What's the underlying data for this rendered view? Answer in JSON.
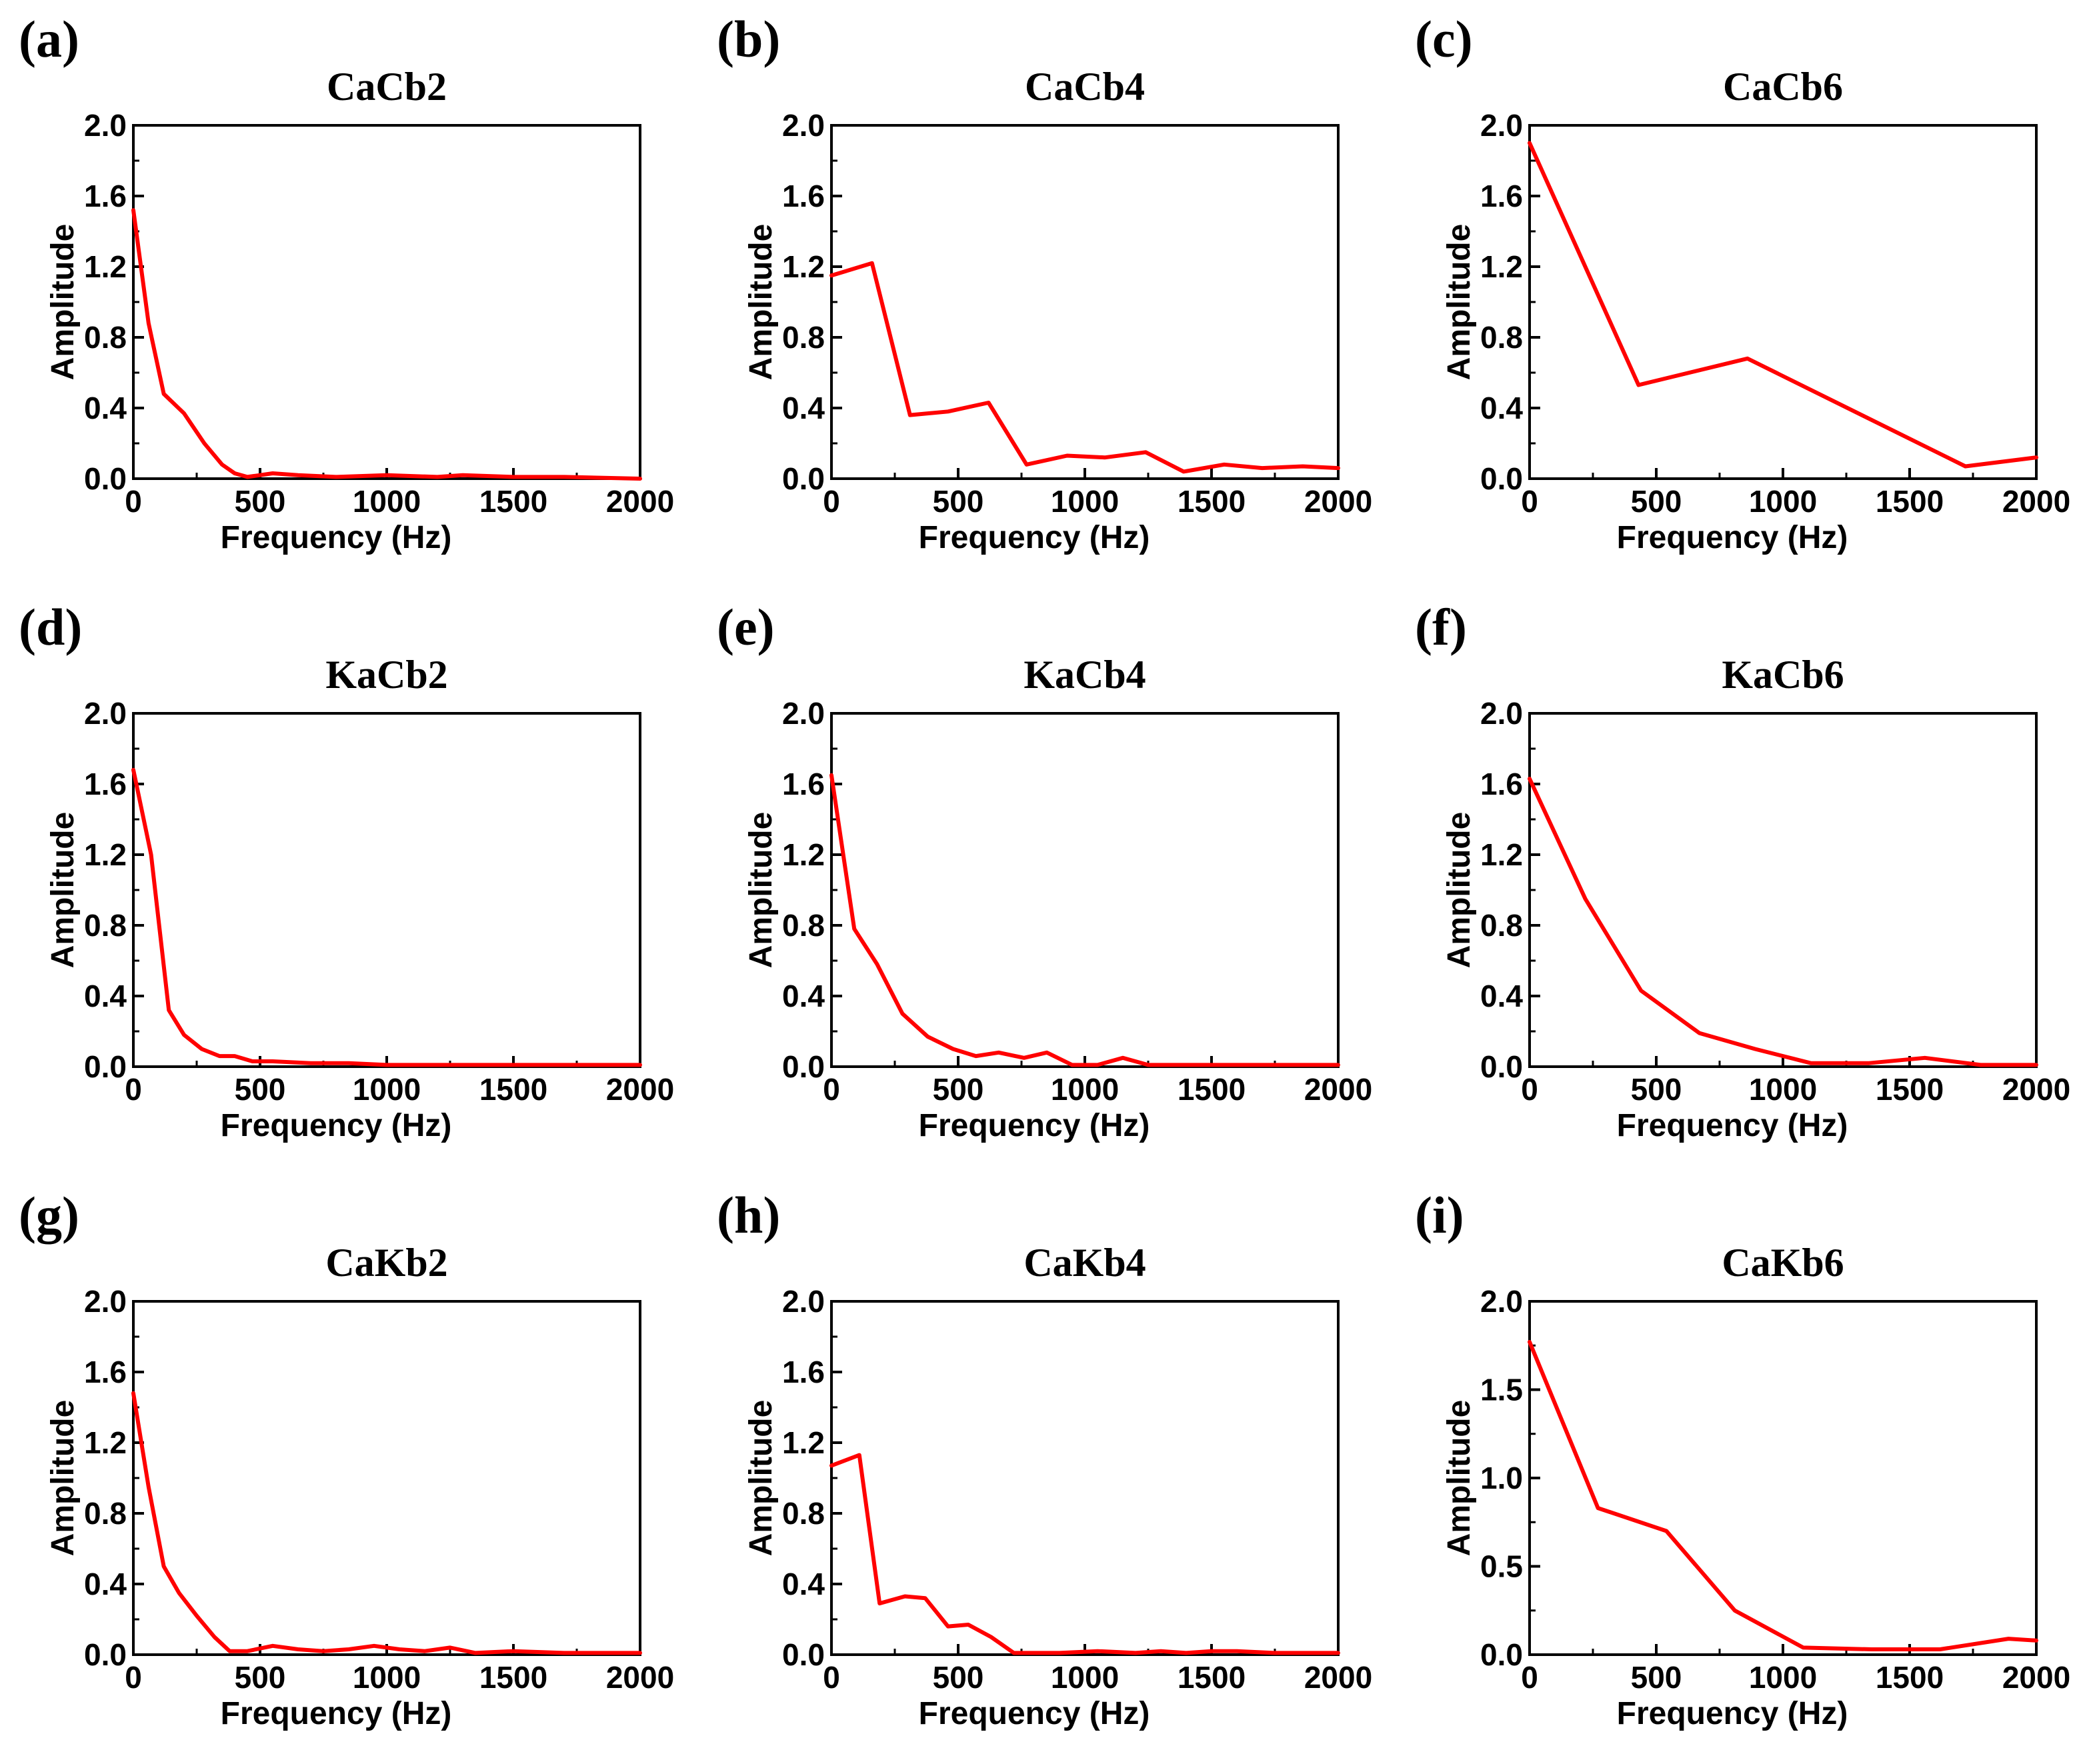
{
  "styles": {
    "line_color": "#ff0000",
    "axis_color": "#000000",
    "background": "#ffffff"
  },
  "chart_data": [
    {
      "panel": "(a)",
      "type": "line",
      "title": "CaCb2",
      "xlabel": "Frequency  (Hz)",
      "ylabel": "Amplitude",
      "xlim": [
        0,
        2000
      ],
      "ylim": [
        0,
        2.0
      ],
      "xticks": [
        0,
        500,
        1000,
        1500,
        2000
      ],
      "xtick_labels": [
        "0",
        "500",
        "1000",
        "1500",
        "2000"
      ],
      "yticks": [
        0.0,
        0.4,
        0.8,
        1.2,
        1.6,
        2.0
      ],
      "ytick_labels": [
        "0.0",
        "0.4",
        "0.8",
        "1.2",
        "1.6",
        "2.0"
      ],
      "series": [
        {
          "name": "CaCb2",
          "x": [
            0,
            60,
            120,
            200,
            280,
            350,
            400,
            450,
            550,
            650,
            800,
            1000,
            1200,
            1300,
            1500,
            1700,
            2000
          ],
          "y": [
            1.52,
            0.88,
            0.48,
            0.37,
            0.2,
            0.08,
            0.03,
            0.01,
            0.03,
            0.02,
            0.01,
            0.02,
            0.01,
            0.02,
            0.01,
            0.01,
            0.0
          ]
        }
      ]
    },
    {
      "panel": "(b)",
      "type": "line",
      "title": "CaCb4",
      "xlabel": "Frequency  (Hz)",
      "ylabel": "Amplitude",
      "xlim": [
        0,
        2000
      ],
      "ylim": [
        0,
        2.0
      ],
      "xticks": [
        0,
        500,
        1000,
        1500,
        2000
      ],
      "xtick_labels": [
        "0",
        "500",
        "1000",
        "1500",
        "2000"
      ],
      "yticks": [
        0.0,
        0.4,
        0.8,
        1.2,
        1.6,
        2.0
      ],
      "ytick_labels": [
        "0.0",
        "0.4",
        "0.8",
        "1.2",
        "1.6",
        "2.0"
      ],
      "series": [
        {
          "name": "CaCb4",
          "x": [
            0,
            160,
            310,
            460,
            620,
            770,
            930,
            1080,
            1240,
            1390,
            1550,
            1700,
            1860,
            2000
          ],
          "y": [
            1.15,
            1.22,
            0.36,
            0.38,
            0.43,
            0.08,
            0.13,
            0.12,
            0.15,
            0.04,
            0.08,
            0.06,
            0.07,
            0.06
          ]
        }
      ]
    },
    {
      "panel": "(c)",
      "type": "line",
      "title": "CaCb6",
      "xlabel": "Frequency  (Hz)",
      "ylabel": "Amplitude",
      "xlim": [
        0,
        2000
      ],
      "ylim": [
        0,
        2.0
      ],
      "xticks": [
        0,
        500,
        1000,
        1500,
        2000
      ],
      "xtick_labels": [
        "0",
        "500",
        "1000",
        "1500",
        "2000"
      ],
      "yticks": [
        0.0,
        0.4,
        0.8,
        1.2,
        1.6,
        2.0
      ],
      "ytick_labels": [
        "0.0",
        "0.4",
        "0.8",
        "1.2",
        "1.6",
        "2.0"
      ],
      "series": [
        {
          "name": "CaCb6",
          "x": [
            0,
            430,
            860,
            1720,
            2000
          ],
          "y": [
            1.9,
            0.53,
            0.68,
            0.07,
            0.12
          ]
        }
      ]
    },
    {
      "panel": "(d)",
      "type": "line",
      "title": "KaCb2",
      "xlabel": "Frequency  (Hz)",
      "ylabel": "Amplitude",
      "xlim": [
        0,
        2000
      ],
      "ylim": [
        0,
        2.0
      ],
      "xticks": [
        0,
        500,
        1000,
        1500,
        2000
      ],
      "xtick_labels": [
        "0",
        "500",
        "1000",
        "1500",
        "2000"
      ],
      "yticks": [
        0.0,
        0.4,
        0.8,
        1.2,
        1.6,
        2.0
      ],
      "ytick_labels": [
        "0.0",
        "0.4",
        "0.8",
        "1.2",
        "1.6",
        "2.0"
      ],
      "series": [
        {
          "name": "KaCb2",
          "x": [
            0,
            70,
            140,
            200,
            270,
            340,
            400,
            470,
            550,
            700,
            850,
            1000,
            1200,
            1500,
            2000
          ],
          "y": [
            1.68,
            1.2,
            0.32,
            0.18,
            0.1,
            0.06,
            0.06,
            0.03,
            0.03,
            0.02,
            0.02,
            0.01,
            0.01,
            0.01,
            0.01
          ]
        }
      ]
    },
    {
      "panel": "(e)",
      "type": "line",
      "title": "KaCb4",
      "xlabel": "Frequency  (Hz)",
      "ylabel": "Amplitude",
      "xlim": [
        0,
        2000
      ],
      "ylim": [
        0,
        2.0
      ],
      "xticks": [
        0,
        500,
        1000,
        1500,
        2000
      ],
      "xtick_labels": [
        "0",
        "500",
        "1000",
        "1500",
        "2000"
      ],
      "yticks": [
        0.0,
        0.4,
        0.8,
        1.2,
        1.6,
        2.0
      ],
      "ytick_labels": [
        "0.0",
        "0.4",
        "0.8",
        "1.2",
        "1.6",
        "2.0"
      ],
      "series": [
        {
          "name": "KaCb4",
          "x": [
            0,
            90,
            180,
            280,
            380,
            480,
            570,
            660,
            760,
            850,
            950,
            1050,
            1150,
            1250,
            1400,
            1600,
            1800,
            2000
          ],
          "y": [
            1.65,
            0.78,
            0.58,
            0.3,
            0.17,
            0.1,
            0.06,
            0.08,
            0.05,
            0.08,
            0.01,
            0.01,
            0.05,
            0.01,
            0.01,
            0.01,
            0.01,
            0.01
          ]
        }
      ]
    },
    {
      "panel": "(f)",
      "type": "line",
      "title": "KaCb6",
      "xlabel": "Frequency  (Hz)",
      "ylabel": "Amplitude",
      "xlim": [
        0,
        2000
      ],
      "ylim": [
        0,
        2.0
      ],
      "xticks": [
        0,
        500,
        1000,
        1500,
        2000
      ],
      "xtick_labels": [
        "0",
        "500",
        "1000",
        "1500",
        "2000"
      ],
      "yticks": [
        0.0,
        0.4,
        0.8,
        1.2,
        1.6,
        2.0
      ],
      "ytick_labels": [
        "0.0",
        "0.4",
        "0.8",
        "1.2",
        "1.6",
        "2.0"
      ],
      "series": [
        {
          "name": "KaCb6",
          "x": [
            0,
            220,
            440,
            670,
            890,
            1110,
            1340,
            1560,
            1780,
            2000
          ],
          "y": [
            1.63,
            0.95,
            0.43,
            0.19,
            0.1,
            0.02,
            0.02,
            0.05,
            0.01,
            0.01
          ]
        }
      ]
    },
    {
      "panel": "(g)",
      "type": "line",
      "title": "CaKb2",
      "xlabel": "Frequency  (Hz)",
      "ylabel": "Amplitude",
      "xlim": [
        0,
        2000
      ],
      "ylim": [
        0,
        2.0
      ],
      "xticks": [
        0,
        500,
        1000,
        1500,
        2000
      ],
      "xtick_labels": [
        "0",
        "500",
        "1000",
        "1500",
        "2000"
      ],
      "yticks": [
        0.0,
        0.4,
        0.8,
        1.2,
        1.6,
        2.0
      ],
      "ytick_labels": [
        "0.0",
        "0.4",
        "0.8",
        "1.2",
        "1.6",
        "2.0"
      ],
      "series": [
        {
          "name": "CaKb2",
          "x": [
            0,
            60,
            120,
            180,
            250,
            320,
            380,
            450,
            550,
            650,
            750,
            850,
            950,
            1050,
            1150,
            1250,
            1350,
            1500,
            1700,
            2000
          ],
          "y": [
            1.48,
            0.95,
            0.5,
            0.35,
            0.22,
            0.1,
            0.02,
            0.02,
            0.05,
            0.03,
            0.02,
            0.03,
            0.05,
            0.03,
            0.02,
            0.04,
            0.01,
            0.02,
            0.01,
            0.01
          ]
        }
      ]
    },
    {
      "panel": "(h)",
      "type": "line",
      "title": "CaKb4",
      "xlabel": "Frequency  (Hz)",
      "ylabel": "Amplitude",
      "xlim": [
        0,
        2000
      ],
      "ylim": [
        0,
        2.0
      ],
      "xticks": [
        0,
        500,
        1000,
        1500,
        2000
      ],
      "xtick_labels": [
        "0",
        "500",
        "1000",
        "1500",
        "2000"
      ],
      "yticks": [
        0.0,
        0.4,
        0.8,
        1.2,
        1.6,
        2.0
      ],
      "ytick_labels": [
        "0.0",
        "0.4",
        "0.8",
        "1.2",
        "1.6",
        "2.0"
      ],
      "series": [
        {
          "name": "CaKb4",
          "x": [
            0,
            110,
            190,
            290,
            370,
            460,
            540,
            630,
            720,
            900,
            1050,
            1200,
            1300,
            1400,
            1500,
            1600,
            1750,
            2000
          ],
          "y": [
            1.07,
            1.13,
            0.29,
            0.33,
            0.32,
            0.16,
            0.17,
            0.1,
            0.01,
            0.01,
            0.02,
            0.01,
            0.02,
            0.01,
            0.02,
            0.02,
            0.01,
            0.01
          ]
        }
      ]
    },
    {
      "panel": "(i)",
      "type": "line",
      "title": "CaKb6",
      "xlabel": "Frequency  (Hz)",
      "ylabel": "Amplitude",
      "xlim": [
        0,
        2000
      ],
      "ylim": [
        0,
        2.0
      ],
      "xticks": [
        0,
        500,
        1000,
        1500,
        2000
      ],
      "xtick_labels": [
        "0",
        "500",
        "1000",
        "1500",
        "2000"
      ],
      "yticks": [
        0.0,
        0.5,
        1.0,
        1.5,
        2.0
      ],
      "ytick_labels": [
        "0.0",
        "0.5",
        "1.0",
        "1.5",
        "2.0"
      ],
      "series": [
        {
          "name": "CaKb6",
          "x": [
            0,
            270,
            540,
            810,
            1080,
            1350,
            1620,
            1890,
            2000
          ],
          "y": [
            1.77,
            0.83,
            0.7,
            0.25,
            0.04,
            0.03,
            0.03,
            0.09,
            0.08
          ]
        }
      ]
    }
  ]
}
